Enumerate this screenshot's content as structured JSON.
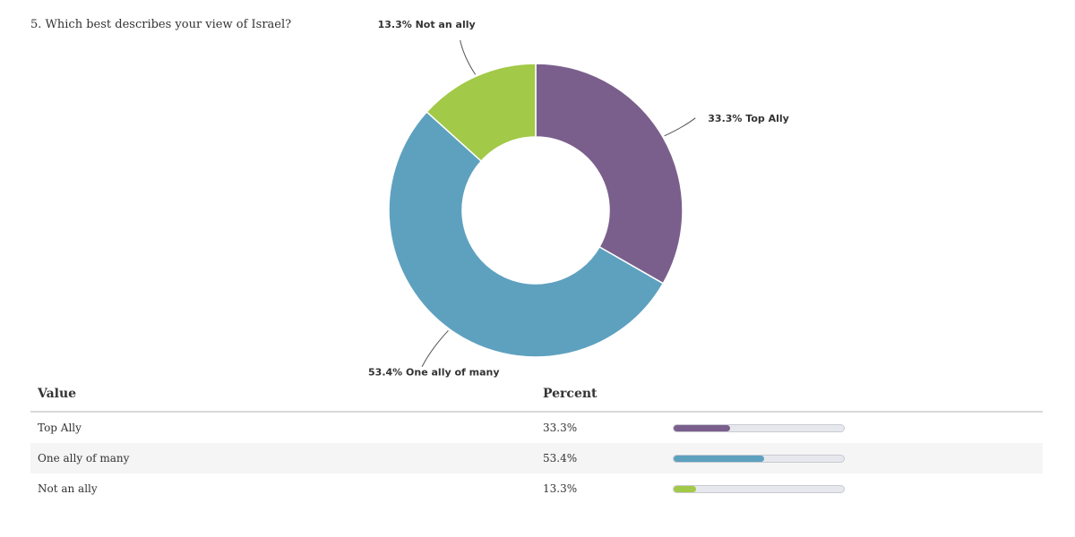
{
  "question": "5. Which best describes your view of Israel?",
  "chart_data": {
    "type": "pie",
    "donut": true,
    "categories": [
      "Top Ally",
      "One ally of many",
      "Not an ally"
    ],
    "values": [
      33.3,
      53.4,
      13.3
    ],
    "unit": "%",
    "colors": [
      "#7a5f8c",
      "#5ea1bf",
      "#a2c947"
    ],
    "slice_labels": [
      "33.3% Top Ally",
      "53.4% One ally of many",
      "13.3% Not an ally"
    ]
  },
  "table": {
    "headers": [
      "Value",
      "Percent"
    ],
    "rows": [
      {
        "value": "Top Ally",
        "percent_text": "33.3%",
        "percent": 33.3,
        "color": "#7a5f8c"
      },
      {
        "value": "One ally of many",
        "percent_text": "53.4%",
        "percent": 53.4,
        "color": "#5ea1bf"
      },
      {
        "value": "Not an ally",
        "percent_text": "13.3%",
        "percent": 13.3,
        "color": "#a2c947"
      }
    ]
  }
}
